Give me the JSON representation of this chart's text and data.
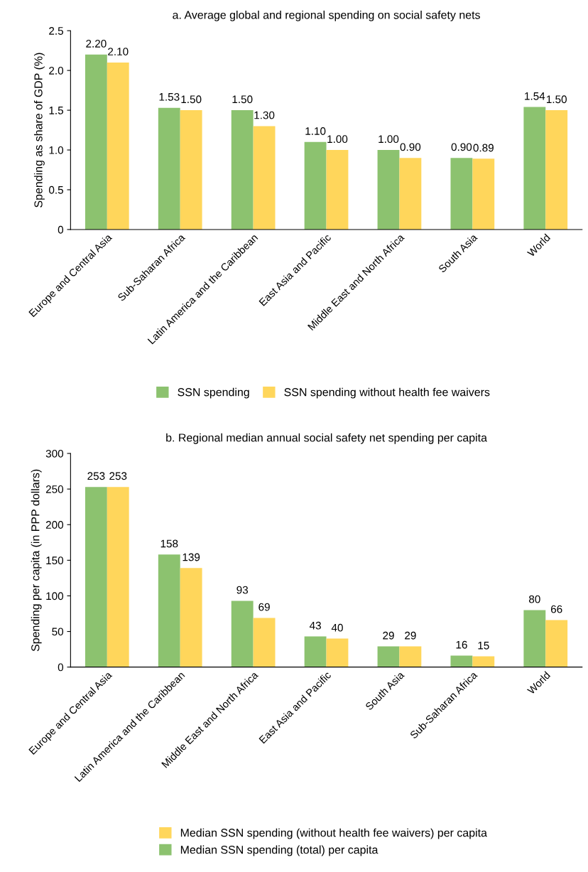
{
  "chart_data": [
    {
      "type": "bar",
      "title": "a. Average global and regional spending on social safety nets",
      "ylabel": "Spending as share of GDP (%)",
      "categories": [
        "Europe and Central Asia",
        "Sub-Saharan Africa",
        "Latin America and the Caribbean",
        "East Asia and Pacific",
        "Middle East and North Africa",
        "South Asia",
        "World"
      ],
      "series": [
        {
          "name": "SSN spending",
          "color": "#8cc26f",
          "values": [
            2.2,
            1.53,
            1.5,
            1.1,
            1.0,
            0.9,
            1.54
          ],
          "value_labels": [
            "2.20",
            "1.53",
            "1.50",
            "1.10",
            "1.00",
            "0.90",
            "1.54"
          ]
        },
        {
          "name": "SSN spending without health fee waivers",
          "color": "#ffd65b",
          "values": [
            2.1,
            1.5,
            1.3,
            1.0,
            0.9,
            0.89,
            1.5
          ],
          "value_labels": [
            "2.10",
            "1.50",
            "1.30",
            "1.00",
            "0.90",
            "0.89",
            "1.50"
          ]
        }
      ],
      "ylim": [
        0,
        2.5
      ],
      "yticks": [
        0,
        {
          "value": 0.5,
          "label": "0.5"
        },
        {
          "value": 1.0,
          "label": "1.0"
        },
        {
          "value": 1.5,
          "label": "1.5"
        },
        {
          "value": 2.0,
          "label": "2.0"
        },
        {
          "value": 2.5,
          "label": "2.5"
        }
      ],
      "grid": false,
      "legend": "bottom"
    },
    {
      "type": "bar",
      "title": "b. Regional median annual social safety net spending per capita",
      "ylabel": "Spending per capita (in PPP dollars)",
      "categories": [
        "Europe and Central Asia",
        "Latin America and the Caribbean",
        "Middle East and North Africa",
        "East Asia and Pacific",
        "South Asia",
        "Sub-Saharan Africa",
        "World"
      ],
      "series": [
        {
          "name": "Median SSN spending (total) per capita",
          "color": "#8cc26f",
          "values": [
            253,
            158,
            93,
            43,
            29,
            16,
            80
          ]
        },
        {
          "name": "Median SSN spending (without health fee waivers) per capita",
          "color": "#ffd65b",
          "values": [
            253,
            139,
            69,
            40,
            29,
            15,
            66
          ]
        }
      ],
      "ylim": [
        0,
        300
      ],
      "yticks": [
        0,
        50,
        100,
        150,
        200,
        250,
        300
      ],
      "data_labels": true,
      "grid": false,
      "legend": "bottom"
    }
  ]
}
